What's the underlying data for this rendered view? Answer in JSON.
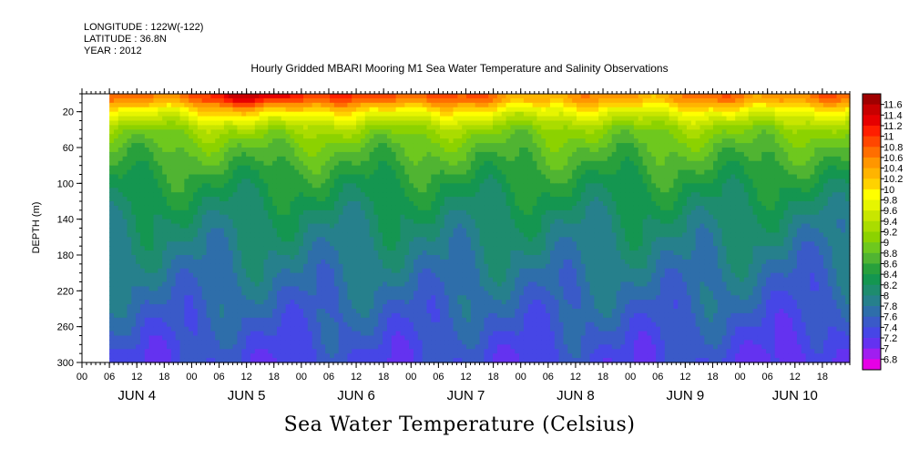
{
  "header": {
    "longitude": "LONGITUDE : 122W(-122)",
    "latitude": "LATITUDE : 36.8N",
    "year": "YEAR : 2012"
  },
  "chart_data": {
    "type": "heatmap",
    "title": "Hourly Gridded MBARI Mooring M1 Sea Water Temperature and Salinity Observations",
    "xlabel": "",
    "ylabel": "DEPTH (m)",
    "footer_label": "Sea Water Temperature (Celsius)",
    "x_range_hours": [
      0,
      168
    ],
    "x_ticks_hours": [
      0,
      6,
      12,
      18,
      24,
      30,
      36,
      42,
      48,
      54,
      60,
      66,
      72,
      78,
      84,
      90,
      96,
      102,
      108,
      114,
      120,
      126,
      132,
      138,
      144,
      150,
      156,
      162
    ],
    "x_tick_labels": [
      "00",
      "06",
      "12",
      "18",
      "00",
      "06",
      "12",
      "18",
      "00",
      "06",
      "12",
      "18",
      "00",
      "06",
      "12",
      "18",
      "00",
      "06",
      "12",
      "18",
      "00",
      "06",
      "12",
      "18",
      "00",
      "06",
      "12",
      "18"
    ],
    "day_labels": [
      "JUN  4",
      "JUN  5",
      "JUN  6",
      "JUN  7",
      "JUN  8",
      "JUN  9",
      "JUN 10"
    ],
    "day_label_hours": [
      12,
      36,
      60,
      84,
      108,
      132,
      156
    ],
    "data_start_hour": 6,
    "y_range": [
      300,
      0
    ],
    "y_ticks": [
      20,
      60,
      100,
      140,
      180,
      220,
      260,
      300
    ],
    "y_tick_labels": [
      "20",
      "60",
      "100",
      "140",
      "180",
      "220",
      "260",
      "300"
    ],
    "colorbar_levels": [
      "11.6",
      "11.4",
      "11.2",
      "11",
      "10.8",
      "10.6",
      "10.4",
      "10.2",
      "10",
      "9.8",
      "9.6",
      "9.4",
      "9.2",
      "9",
      "8.8",
      "8.6",
      "8.4",
      "8.2",
      "8",
      "7.8",
      "7.6",
      "7.4",
      "7.2",
      "7",
      "6.8"
    ],
    "colorbar_colors": [
      "#a00000",
      "#c80000",
      "#e60000",
      "#ff1e00",
      "#ff4600",
      "#ff6e00",
      "#ff9600",
      "#ffb400",
      "#ffd200",
      "#ffff00",
      "#e6f500",
      "#c8e600",
      "#aadc00",
      "#8cd200",
      "#6ec81e",
      "#50b432",
      "#28a03c",
      "#149650",
      "#1e8c6e",
      "#26808c",
      "#2e6eaa",
      "#3a5ac8",
      "#4646e6",
      "#6432f0",
      "#a01ef0",
      "#e600e6"
    ],
    "approx_profile": [
      {
        "depth_m": 5,
        "temp_c": 10.6
      },
      {
        "depth_m": 20,
        "temp_c": 9.8
      },
      {
        "depth_m": 40,
        "temp_c": 9.1
      },
      {
        "depth_m": 60,
        "temp_c": 8.8
      },
      {
        "depth_m": 100,
        "temp_c": 8.4
      },
      {
        "depth_m": 140,
        "temp_c": 8.1
      },
      {
        "depth_m": 180,
        "temp_c": 7.9
      },
      {
        "depth_m": 220,
        "temp_c": 7.7
      },
      {
        "depth_m": 260,
        "temp_c": 7.5
      },
      {
        "depth_m": 300,
        "temp_c": 7.3
      }
    ]
  }
}
